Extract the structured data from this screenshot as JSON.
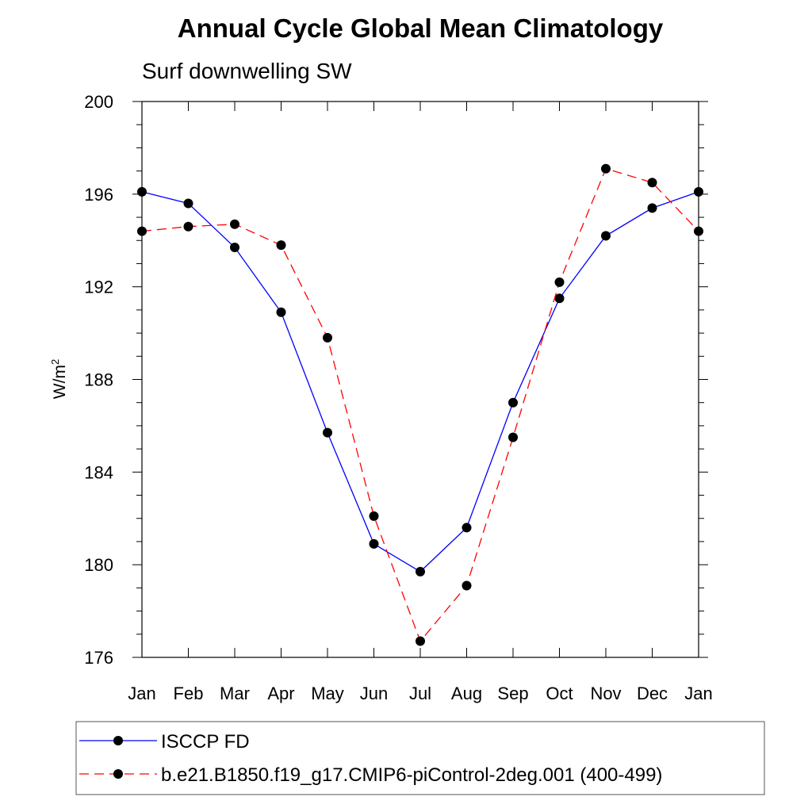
{
  "chart_data": {
    "type": "line",
    "title": "Annual Cycle Global Mean Climatology",
    "subtitle": "Surf downwelling SW",
    "ylabel": "W/m",
    "ylabel_superscript": "2",
    "xlabel": "",
    "categories": [
      "Jan",
      "Feb",
      "Mar",
      "Apr",
      "May",
      "Jun",
      "Jul",
      "Aug",
      "Sep",
      "Oct",
      "Nov",
      "Dec",
      "Jan"
    ],
    "ylim": [
      176,
      200
    ],
    "yticks": [
      176,
      180,
      184,
      188,
      192,
      196,
      200
    ],
    "grid": false,
    "legend_position": "bottom",
    "series": [
      {
        "name": "ISCCP FD",
        "color": "#0000ff",
        "dash": "solid",
        "marker": "filled-circle",
        "values": [
          196.1,
          195.6,
          193.7,
          190.9,
          185.7,
          180.9,
          179.7,
          181.6,
          187.0,
          191.5,
          194.2,
          195.4,
          196.1
        ]
      },
      {
        "name": "b.e21.B1850.f19_g17.CMIP6-piControl-2deg.001 (400-499)",
        "color": "#ff0000",
        "dash": "dashed",
        "marker": "filled-circle",
        "values": [
          194.4,
          194.6,
          194.7,
          193.8,
          189.8,
          182.1,
          176.7,
          179.1,
          185.5,
          192.2,
          197.1,
          196.5,
          194.4
        ]
      }
    ]
  }
}
